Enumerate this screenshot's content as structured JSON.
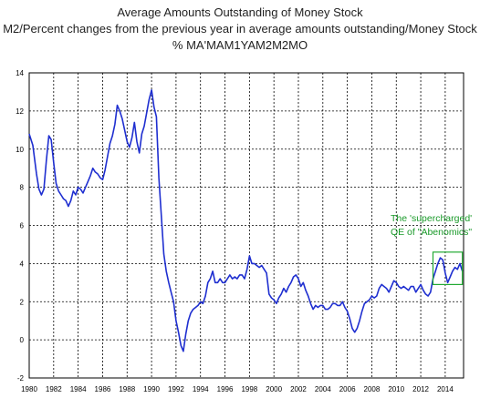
{
  "chart_data": {
    "type": "line",
    "title": "Average Amounts Outstanding of Money Stock",
    "subtitle": "M2/Percent changes from the previous year in average amounts outstanding/Money Stock",
    "series_code": "% MA'MAM1YAM2M2MO",
    "xlabel": "",
    "ylabel": "",
    "xlim": [
      1980,
      2015.5
    ],
    "ylim": [
      -2,
      14
    ],
    "x_ticks": [
      "1980",
      "1982",
      "1984",
      "1986",
      "1988",
      "1990",
      "1992",
      "1994",
      "1996",
      "1998",
      "2000",
      "2002",
      "2004",
      "2006",
      "2008",
      "2010",
      "2012",
      "2014"
    ],
    "y_ticks": [
      "-2",
      "0",
      "2",
      "4",
      "6",
      "8",
      "10",
      "12",
      "14"
    ],
    "grid": true,
    "legend": "none",
    "line_color": "#1f2fd0",
    "annotation": {
      "lines": [
        "The 'supercharged'",
        "QE of \"Abenomics\""
      ],
      "color": "#22aa33",
      "box_x": [
        2013.0,
        2015.4
      ],
      "box_y": [
        2.9,
        4.6
      ]
    },
    "series": [
      {
        "x": [
          1980.0,
          1980.3,
          1980.6,
          1980.8,
          1981.0,
          1981.2,
          1981.4,
          1981.6,
          1981.8,
          1982.0,
          1982.2,
          1982.4,
          1982.6,
          1982.8,
          1983.0,
          1983.2,
          1983.4,
          1983.6,
          1983.8,
          1984.0,
          1984.2,
          1984.4,
          1984.6,
          1984.8,
          1985.0,
          1985.2,
          1985.4,
          1985.6,
          1985.8,
          1986.0,
          1986.2,
          1986.4,
          1986.6,
          1986.8,
          1987.0,
          1987.2,
          1987.4,
          1987.6,
          1987.8,
          1988.0,
          1988.2,
          1988.4,
          1988.6,
          1988.8,
          1989.0,
          1989.2,
          1989.4,
          1989.6,
          1989.8,
          1990.0,
          1990.2,
          1990.4,
          1990.6,
          1990.8,
          1991.0,
          1991.2,
          1991.4,
          1991.6,
          1991.8,
          1992.0,
          1992.2,
          1992.4,
          1992.6,
          1992.8,
          1993.0,
          1993.2,
          1993.4,
          1993.6,
          1993.8,
          1994.0,
          1994.2,
          1994.4,
          1994.6,
          1994.8,
          1995.0,
          1995.2,
          1995.4,
          1995.6,
          1995.8,
          1996.0,
          1996.2,
          1996.4,
          1996.6,
          1996.8,
          1997.0,
          1997.2,
          1997.4,
          1997.6,
          1997.8,
          1998.0,
          1998.2,
          1998.4,
          1998.6,
          1998.8,
          1999.0,
          1999.2,
          1999.4,
          1999.6,
          1999.8,
          2000.0,
          2000.2,
          2000.4,
          2000.6,
          2000.8,
          2001.0,
          2001.2,
          2001.4,
          2001.6,
          2001.8,
          2002.0,
          2002.2,
          2002.4,
          2002.6,
          2002.8,
          2003.0,
          2003.2,
          2003.4,
          2003.6,
          2003.8,
          2004.0,
          2004.2,
          2004.4,
          2004.6,
          2004.8,
          2005.0,
          2005.2,
          2005.4,
          2005.6,
          2005.8,
          2006.0,
          2006.2,
          2006.4,
          2006.6,
          2006.8,
          2007.0,
          2007.2,
          2007.4,
          2007.6,
          2007.8,
          2008.0,
          2008.2,
          2008.4,
          2008.6,
          2008.8,
          2009.0,
          2009.2,
          2009.4,
          2009.6,
          2009.8,
          2010.0,
          2010.2,
          2010.4,
          2010.6,
          2010.8,
          2011.0,
          2011.2,
          2011.4,
          2011.6,
          2011.8,
          2012.0,
          2012.2,
          2012.4,
          2012.6,
          2012.8,
          2013.0,
          2013.2,
          2013.4,
          2013.6,
          2013.8,
          2014.0,
          2014.2,
          2014.4,
          2014.6,
          2014.8,
          2015.0,
          2015.2,
          2015.4
        ],
        "values": [
          10.8,
          10.2,
          8.7,
          7.9,
          7.6,
          7.9,
          9.4,
          10.7,
          10.5,
          9.3,
          8.2,
          7.8,
          7.6,
          7.4,
          7.3,
          7.0,
          7.3,
          7.8,
          7.6,
          8.0,
          7.9,
          7.7,
          8.0,
          8.3,
          8.6,
          9.0,
          8.8,
          8.7,
          8.5,
          8.4,
          8.9,
          9.6,
          10.3,
          10.7,
          11.3,
          12.3,
          12.0,
          11.6,
          11.0,
          10.4,
          10.1,
          10.6,
          11.4,
          10.4,
          9.8,
          10.8,
          11.2,
          11.9,
          12.6,
          13.1,
          12.2,
          11.7,
          8.5,
          6.5,
          4.5,
          3.6,
          3.0,
          2.5,
          2.0,
          1.0,
          0.4,
          -0.3,
          -0.6,
          0.3,
          1.0,
          1.4,
          1.6,
          1.7,
          1.8,
          2.0,
          1.9,
          2.3,
          3.0,
          3.2,
          3.6,
          3.0,
          3.0,
          3.2,
          3.0,
          3.0,
          3.2,
          3.4,
          3.2,
          3.3,
          3.2,
          3.4,
          3.4,
          3.2,
          3.7,
          4.4,
          4.0,
          4.0,
          3.9,
          3.8,
          3.9,
          3.7,
          3.5,
          2.4,
          2.2,
          2.1,
          1.9,
          2.2,
          2.4,
          2.7,
          2.5,
          2.8,
          3.0,
          3.3,
          3.4,
          3.2,
          2.8,
          3.0,
          2.6,
          2.3,
          1.9,
          1.6,
          1.8,
          1.7,
          1.8,
          1.8,
          1.6,
          1.6,
          1.7,
          1.9,
          1.9,
          1.8,
          1.8,
          2.0,
          1.7,
          1.5,
          1.1,
          0.6,
          0.4,
          0.6,
          1.0,
          1.5,
          1.9,
          2.0,
          2.1,
          2.3,
          2.2,
          2.3,
          2.7,
          2.9,
          2.8,
          2.7,
          2.5,
          2.8,
          3.1,
          3.0,
          2.8,
          2.7,
          2.8,
          2.7,
          2.6,
          2.8,
          2.8,
          2.5,
          2.7,
          2.9,
          2.6,
          2.4,
          2.3,
          2.5,
          3.2,
          3.6,
          4.0,
          4.3,
          4.2,
          3.5,
          3.0,
          3.3,
          3.6,
          3.8,
          3.7,
          4.0,
          3.6
        ]
      }
    ]
  }
}
